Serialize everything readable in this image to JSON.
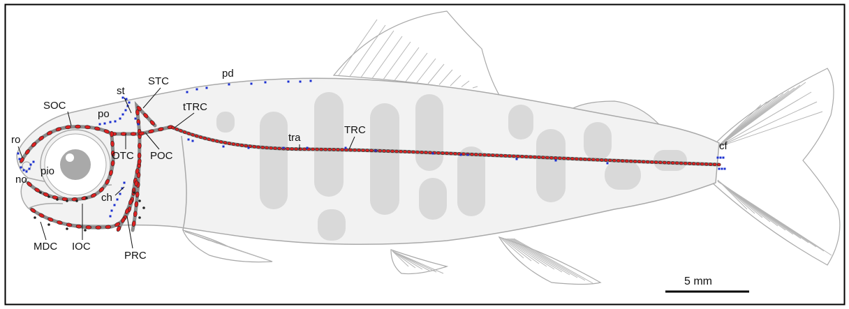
{
  "labels": {
    "ro": "ro",
    "no": "no",
    "pio": "pio",
    "soc": "SOC",
    "po": "po",
    "st": "st",
    "stc": "STC",
    "pd": "pd",
    "ttrc": "tTRC",
    "otc": "OTC",
    "poc": "POC",
    "tra": "tra",
    "trc": "TRC",
    "cf": "cf",
    "ch": "ch",
    "mdc": "MDC",
    "ioc": "IOC",
    "prc": "PRC"
  },
  "scale_bar": {
    "label": "5 mm"
  },
  "colors": {
    "outline": "#a9a9a9",
    "fish_fill": "#f2f2f2",
    "blotch": "#d9d9d9",
    "canal": "#8c8c8c",
    "neuromast_canal": "#dd2222",
    "neuromast_superficial": "#1a2fd0",
    "pore": "#222222"
  }
}
